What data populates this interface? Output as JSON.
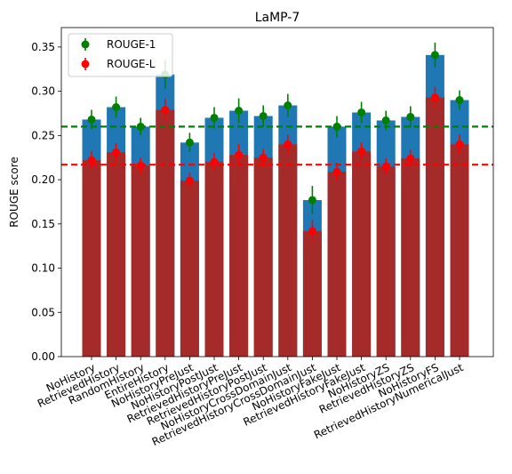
{
  "chart_data": {
    "type": "bar",
    "title": "LaMP-7",
    "xlabel": "",
    "ylabel": "ROUGE score",
    "ylim": [
      0,
      0.372
    ],
    "yticks": [
      "0.00",
      "0.05",
      "0.10",
      "0.15",
      "0.20",
      "0.25",
      "0.30",
      "0.35"
    ],
    "grid": false,
    "legend_position": "top-left",
    "categories": [
      "NoHistory",
      "RetrievedHistory",
      "RandomHistory",
      "EntireHistory",
      "NoHistoryPreJust",
      "NoHistoryPostJust",
      "RetrievedHistoryPreJust",
      "RetrievedHistoryPostJust",
      "NoHistoryCrossDomainJust",
      "RetrievedHistoryCrossDomainJust",
      "NoHistoryFakeJust",
      "RetrievedHistoryFakeJust",
      "NoHistoryZS",
      "RetrievedHistoryZS",
      "NoHistoryFS",
      "RetrievedHistoryNumericalJust"
    ],
    "series": [
      {
        "name": "ROUGE-1",
        "bar_color": "#1f77b4",
        "marker_color": "#008000",
        "values": [
          0.268,
          0.282,
          0.26,
          0.319,
          0.242,
          0.27,
          0.278,
          0.272,
          0.284,
          0.177,
          0.26,
          0.276,
          0.267,
          0.271,
          0.341,
          0.29
        ],
        "errors": [
          0.011,
          0.012,
          0.01,
          0.016,
          0.011,
          0.012,
          0.014,
          0.012,
          0.013,
          0.016,
          0.012,
          0.012,
          0.011,
          0.012,
          0.014,
          0.011
        ]
      },
      {
        "name": "ROUGE-L",
        "bar_color": "#a52a2a",
        "marker_color": "#ff0000",
        "values": [
          0.222,
          0.231,
          0.216,
          0.279,
          0.199,
          0.22,
          0.228,
          0.225,
          0.24,
          0.142,
          0.209,
          0.232,
          0.215,
          0.224,
          0.293,
          0.24
        ],
        "errors": [
          0.01,
          0.01,
          0.009,
          0.013,
          0.009,
          0.01,
          0.012,
          0.01,
          0.011,
          0.013,
          0.01,
          0.01,
          0.009,
          0.01,
          0.012,
          0.011
        ]
      }
    ],
    "reference_lines": [
      {
        "series": "ROUGE-1",
        "value": 0.26,
        "color": "#008000",
        "style": "dashed"
      },
      {
        "series": "ROUGE-L",
        "value": 0.217,
        "color": "#ff0000",
        "style": "dashed"
      }
    ]
  }
}
